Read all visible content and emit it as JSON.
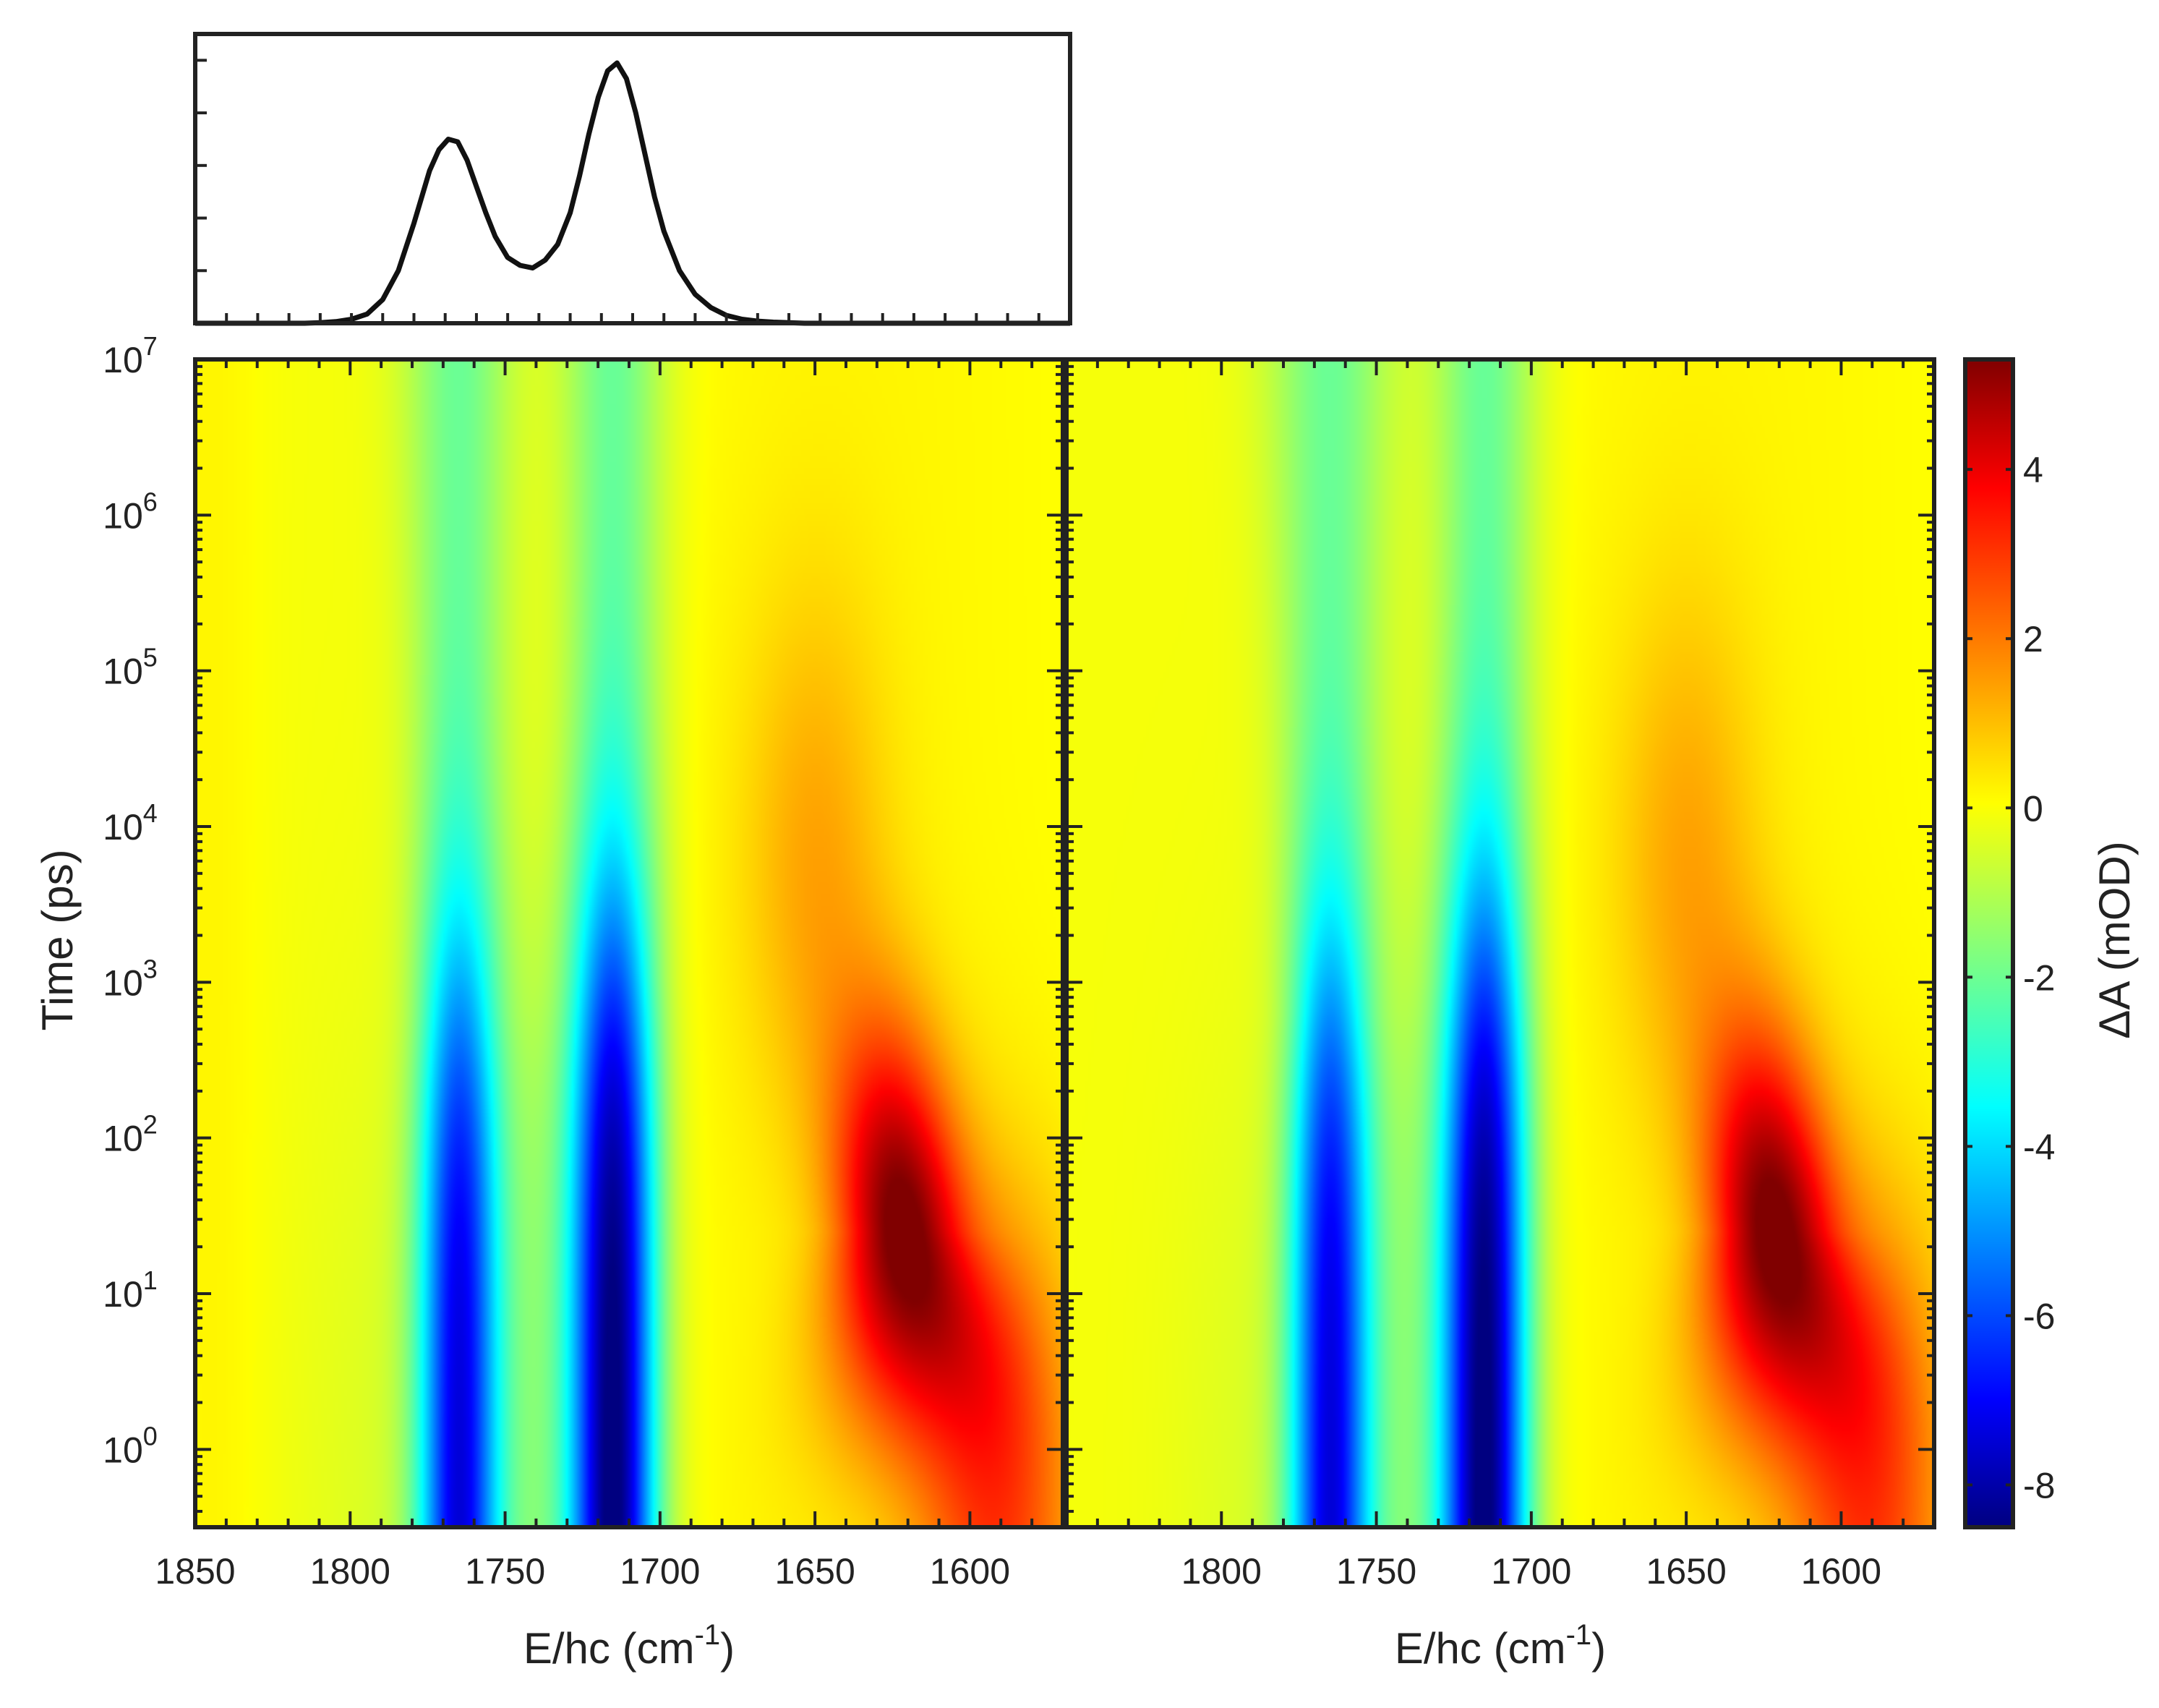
{
  "chart_data": [
    {
      "type": "line",
      "panel": "top-absorbance",
      "x": [
        1850,
        1845,
        1840,
        1835,
        1830,
        1825,
        1820,
        1815,
        1810,
        1805,
        1800,
        1795,
        1790,
        1785,
        1780,
        1775,
        1772,
        1769,
        1766,
        1763,
        1760,
        1757,
        1754,
        1750,
        1746,
        1742,
        1738,
        1734,
        1730,
        1727,
        1724,
        1721,
        1718,
        1715,
        1712,
        1709,
        1706,
        1703,
        1700,
        1695,
        1690,
        1685,
        1680,
        1675,
        1670,
        1665,
        1660,
        1655,
        1650,
        1645,
        1640,
        1635,
        1630,
        1625,
        1620,
        1615,
        1610,
        1605,
        1600,
        1595,
        1590,
        1585,
        1580,
        1575,
        1570
      ],
      "series": [
        {
          "values": [
            0,
            0,
            0,
            0,
            0,
            0,
            0,
            0,
            0.002,
            0.006,
            0.015,
            0.035,
            0.09,
            0.2,
            0.38,
            0.58,
            0.66,
            0.7,
            0.69,
            0.62,
            0.52,
            0.42,
            0.33,
            0.25,
            0.22,
            0.21,
            0.24,
            0.3,
            0.42,
            0.56,
            0.72,
            0.86,
            0.96,
            0.99,
            0.93,
            0.8,
            0.64,
            0.48,
            0.35,
            0.2,
            0.11,
            0.06,
            0.03,
            0.015,
            0.008,
            0.004,
            0.002,
            0,
            0,
            0,
            0,
            0,
            0,
            0,
            0,
            0,
            0,
            0,
            0,
            0,
            0,
            0,
            0,
            0,
            0
          ]
        }
      ],
      "xlim": [
        1850,
        1570
      ],
      "ylim": [
        0,
        1.1
      ],
      "ticks_labels_shown": false
    },
    {
      "type": "heatmap",
      "panels": [
        "left",
        "right"
      ],
      "xlabel": "E/hc (cm",
      "xlabel_sup": "-1",
      "xlabel_close": ")",
      "ylabel": "Time (ps)",
      "x_ticks_left": [
        "1850",
        "1800",
        "1750",
        "1700",
        "1650",
        "1600"
      ],
      "x_ticks_right": [
        "1800",
        "1750",
        "1700",
        "1650",
        "1600"
      ],
      "y_ticks_base": "10",
      "y_ticks_exp": [
        "0",
        "1",
        "2",
        "3",
        "4",
        "5",
        "6",
        "7"
      ],
      "xlim": [
        1850,
        1570
      ],
      "ylim_log10": [
        -0.5,
        7
      ],
      "yscale": "log",
      "colorbar": {
        "label": "ΔA (mOD)",
        "ticks": [
          "4",
          "2",
          "0",
          "-2",
          "-4",
          "-6",
          "-8"
        ],
        "range": [
          -8.5,
          5.3
        ],
        "colormap": "jet",
        "position": "right"
      },
      "features": [
        {
          "kind": "bleach",
          "center_cm": 1765,
          "width_cm": 9,
          "peak_mOD": -6.6,
          "decay_log10_ps": 2.8
        },
        {
          "kind": "bleach",
          "center_cm": 1715,
          "width_cm": 9,
          "peak_mOD": -8.3,
          "decay_log10_ps": 3.2
        },
        {
          "kind": "induced-absorption",
          "center_cm": 1622,
          "peak_mOD": 5.0,
          "peak_log10_ps": 1.4
        },
        {
          "kind": "induced-absorption",
          "center_cm": 1650,
          "peak_mOD": 1.1,
          "peak_log10_ps": 4.0
        }
      ]
    }
  ]
}
